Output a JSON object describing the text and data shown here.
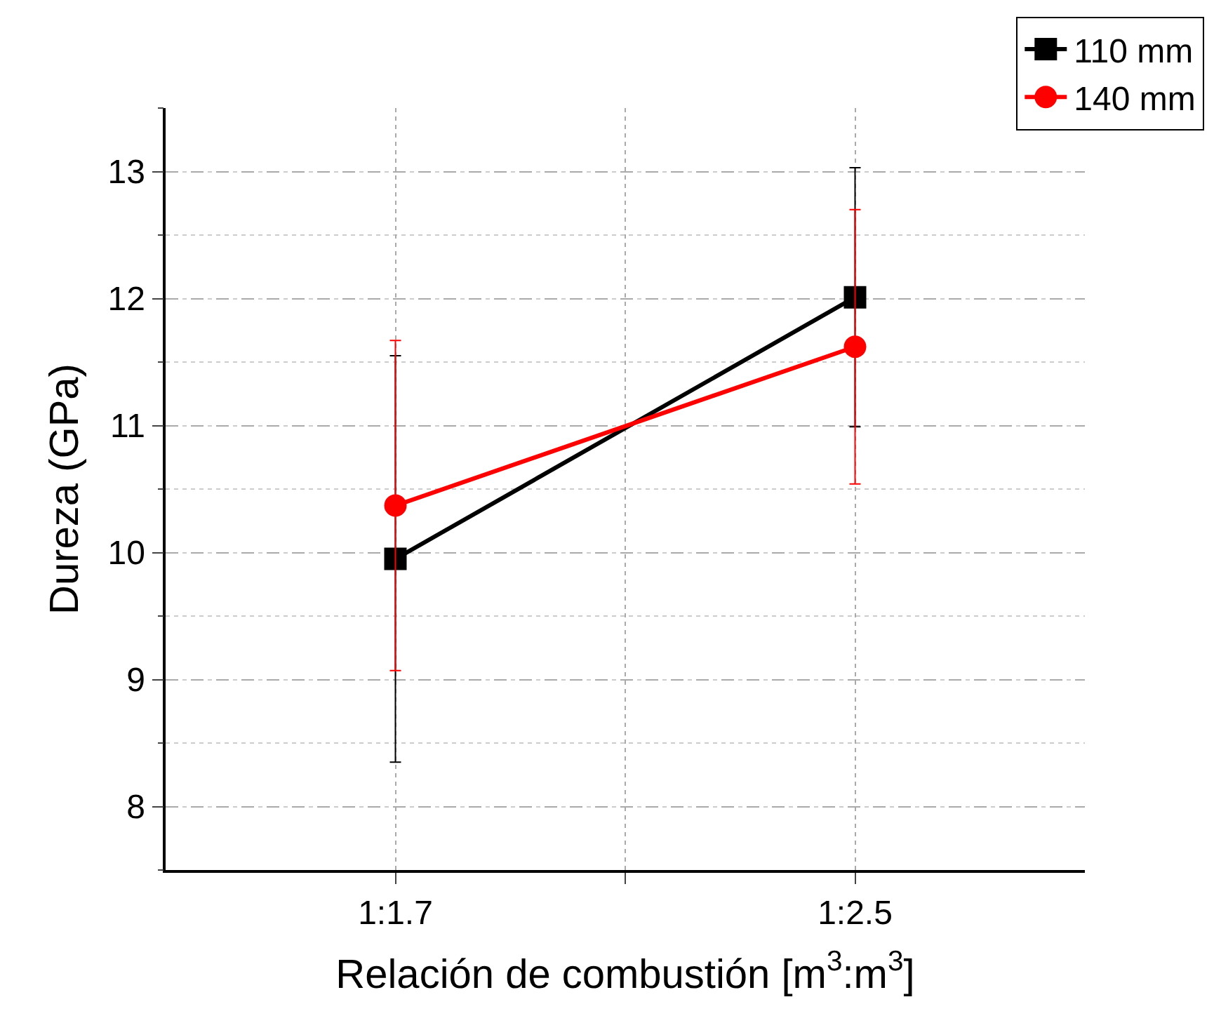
{
  "chart_data": {
    "type": "line",
    "xlabel": "Relación de combustión [m$^{3}$:m$^{3}$]",
    "ylabel": "Dureza (GPa)",
    "categories": [
      "1:1.7",
      "1:2.5"
    ],
    "series": [
      {
        "name": "110 mm",
        "color": "#000000",
        "marker": "square",
        "values": [
          9.95,
          12.01
        ],
        "errors": [
          1.6,
          1.02
        ]
      },
      {
        "name": "140 mm",
        "color": "#ff0000",
        "marker": "circle",
        "values": [
          10.37,
          11.62
        ],
        "errors": [
          1.3,
          1.08
        ]
      }
    ],
    "ylim": [
      7.5,
      13.5
    ],
    "yticks": [
      8,
      9,
      10,
      11,
      12,
      13
    ],
    "grid": true,
    "legend": "top right",
    "line_style": "solid"
  }
}
